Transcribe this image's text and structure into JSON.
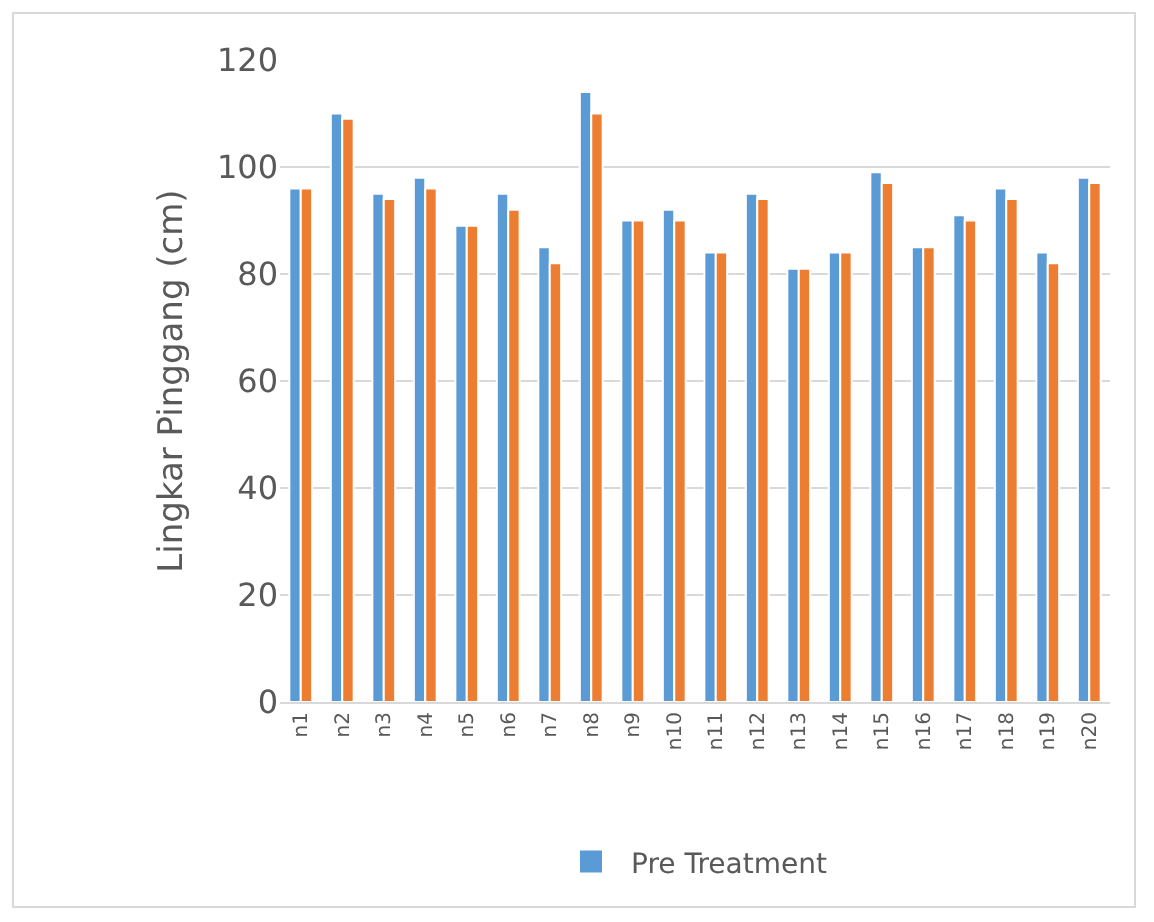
{
  "chart_data": {
    "type": "bar",
    "ylabel": "Lingkar Pinggang (cm)",
    "categories": [
      "n1",
      "n2",
      "n3",
      "n4",
      "n5",
      "n6",
      "n7",
      "n8",
      "n9",
      "n10",
      "n11",
      "n12",
      "n13",
      "n14",
      "n15",
      "n16",
      "n17",
      "n18",
      "n19",
      "n20"
    ],
    "series": [
      {
        "name": "Pre Treatment",
        "color": "#5b9bd5",
        "values": [
          96,
          110,
          95,
          98,
          89,
          95,
          85,
          114,
          90,
          92,
          84,
          95,
          81,
          84,
          99,
          85,
          91,
          96,
          84,
          98
        ]
      },
      {
        "color": "#ed7d31",
        "values": [
          96,
          109,
          94,
          96,
          89,
          92,
          82,
          110,
          90,
          90,
          84,
          94,
          81,
          84,
          97,
          85,
          90,
          94,
          82,
          97
        ]
      }
    ],
    "ylim": [
      0,
      120
    ],
    "yticks": [
      0,
      20,
      40,
      60,
      80,
      100,
      120
    ],
    "grid": "y",
    "legend": "bottom"
  }
}
